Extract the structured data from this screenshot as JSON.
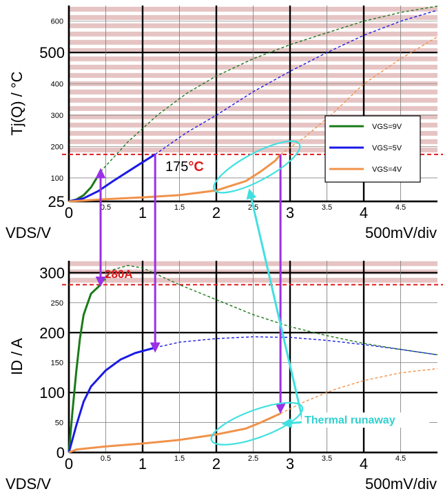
{
  "chart_data": [
    {
      "type": "line",
      "ylabel": "Tj(Q) / °C",
      "xlabel": "VDS/V",
      "x_scale_label": "500mV/div",
      "xlim": [
        0,
        5
      ],
      "ylim": [
        25,
        650
      ],
      "x_major_ticks": [
        {
          "v": 0,
          "t": "0"
        },
        {
          "v": 1,
          "t": "1"
        },
        {
          "v": 2,
          "t": "2"
        },
        {
          "v": 3,
          "t": "3"
        },
        {
          "v": 4,
          "t": "4"
        }
      ],
      "x_minor_ticks": [
        {
          "v": 0.5,
          "t": "0.5"
        },
        {
          "v": 1.5,
          "t": "1.5"
        },
        {
          "v": 2.5,
          "t": "2.5"
        },
        {
          "v": 3.5,
          "t": "3.5"
        },
        {
          "v": 4.5,
          "t": "4.5"
        }
      ],
      "y_major_ticks": [
        {
          "v": 25,
          "t": "25"
        },
        {
          "v": 500,
          "t": "500"
        }
      ],
      "y_minor_ticks": [
        {
          "v": 100,
          "t": "100"
        },
        {
          "v": 200,
          "t": "200"
        },
        {
          "v": 300,
          "t": "300"
        },
        {
          "v": 400,
          "t": "400"
        },
        {
          "v": 600,
          "t": "600"
        }
      ],
      "limit_line": {
        "value": 175,
        "label_num": "175",
        "label_unit": "°C"
      },
      "hatch_from": 175,
      "legend_placement": "right",
      "series": [
        {
          "name": "VGS=9V",
          "color": "#1a7a1a",
          "solid": [
            [
              0,
              25
            ],
            [
              0.1,
              31
            ],
            [
              0.2,
              45
            ],
            [
              0.3,
              70
            ],
            [
              0.43,
              120
            ]
          ],
          "dashed": [
            [
              0.43,
              120
            ],
            [
              0.8,
              215
            ],
            [
              1.2,
              300
            ],
            [
              1.6,
              370
            ],
            [
              2,
              425
            ],
            [
              2.5,
              480
            ],
            [
              3,
              525
            ],
            [
              3.5,
              563
            ],
            [
              4,
              600
            ],
            [
              4.5,
              628
            ],
            [
              5,
              648
            ]
          ]
        },
        {
          "name": "VGS=5V",
          "color": "#1a1ae6",
          "solid": [
            [
              0,
              25
            ],
            [
              0.2,
              35
            ],
            [
              0.4,
              58
            ],
            [
              0.6,
              90
            ],
            [
              0.8,
              120
            ],
            [
              1,
              150
            ],
            [
              1.17,
              175
            ]
          ],
          "dashed": [
            [
              1.17,
              175
            ],
            [
              1.6,
              245
            ],
            [
              2,
              300
            ],
            [
              2.5,
              375
            ],
            [
              3,
              440
            ],
            [
              3.5,
              500
            ],
            [
              4,
              555
            ],
            [
              4.5,
              600
            ],
            [
              5,
              635
            ]
          ]
        },
        {
          "name": "VGS=4V",
          "color": "#f0924a",
          "solid": [
            [
              0,
              25
            ],
            [
              0.5,
              32
            ],
            [
              1,
              38
            ],
            [
              1.5,
              45
            ],
            [
              2,
              60
            ],
            [
              2.4,
              90
            ],
            [
              2.6,
              120
            ],
            [
              2.8,
              155
            ],
            [
              2.87,
              175
            ]
          ],
          "dashed": [
            [
              2.87,
              175
            ],
            [
              3.2,
              230
            ],
            [
              3.6,
              310
            ],
            [
              4,
              400
            ],
            [
              4.5,
              480
            ],
            [
              5,
              550
            ]
          ]
        }
      ]
    },
    {
      "type": "line",
      "ylabel": "ID / A",
      "xlabel": "VDS/V",
      "x_scale_label": "500mV/div",
      "xlim": [
        0,
        5
      ],
      "ylim": [
        0,
        320
      ],
      "x_major_ticks": [
        {
          "v": 0,
          "t": "0"
        },
        {
          "v": 1,
          "t": "1"
        },
        {
          "v": 2,
          "t": "2"
        },
        {
          "v": 3,
          "t": "3"
        },
        {
          "v": 4,
          "t": "4"
        }
      ],
      "x_minor_ticks": [
        {
          "v": 0.5,
          "t": "0.5"
        },
        {
          "v": 1.5,
          "t": "1.5"
        },
        {
          "v": 2.5,
          "t": "2.5"
        },
        {
          "v": 3.5,
          "t": "3.5"
        },
        {
          "v": 4.5,
          "t": "4.5"
        }
      ],
      "y_major_ticks": [
        {
          "v": 0,
          "t": "0"
        },
        {
          "v": 100,
          "t": "100"
        },
        {
          "v": 200,
          "t": "200"
        },
        {
          "v": 300,
          "t": "300"
        }
      ],
      "y_minor_ticks": [
        {
          "v": 50,
          "t": "50"
        },
        {
          "v": 150,
          "t": "150"
        },
        {
          "v": 250,
          "t": "250"
        }
      ],
      "limit_line": {
        "value": 280,
        "label_num": "280A",
        "label_unit": ""
      },
      "hatch_from": 280,
      "series": [
        {
          "name": "VGS=9V",
          "color": "#1a7a1a",
          "solid": [
            [
              0,
              0
            ],
            [
              0.05,
              70
            ],
            [
              0.1,
              135
            ],
            [
              0.15,
              190
            ],
            [
              0.2,
              230
            ],
            [
              0.3,
              265
            ],
            [
              0.43,
              280
            ]
          ],
          "dashed": [
            [
              0.43,
              280
            ],
            [
              0.6,
              305
            ],
            [
              0.8,
              312
            ],
            [
              1,
              308
            ],
            [
              1.5,
              280
            ],
            [
              2,
              255
            ],
            [
              2.5,
              230
            ],
            [
              3,
              210
            ],
            [
              3.5,
              195
            ],
            [
              4,
              182
            ],
            [
              4.5,
              172
            ],
            [
              5,
              163
            ]
          ]
        },
        {
          "name": "VGS=5V",
          "color": "#1a1ae6",
          "solid": [
            [
              0,
              0
            ],
            [
              0.1,
              45
            ],
            [
              0.2,
              85
            ],
            [
              0.3,
              110
            ],
            [
              0.5,
              137
            ],
            [
              0.7,
              155
            ],
            [
              0.9,
              166
            ],
            [
              1.17,
              175
            ]
          ],
          "dashed": [
            [
              1.17,
              175
            ],
            [
              1.5,
              184
            ],
            [
              2,
              190
            ],
            [
              2.5,
              193
            ],
            [
              3,
              192
            ],
            [
              3.5,
              187
            ],
            [
              4,
              180
            ],
            [
              4.5,
              172
            ],
            [
              5,
              163
            ]
          ]
        },
        {
          "name": "VGS=4V",
          "color": "#f0924a",
          "solid": [
            [
              0,
              0
            ],
            [
              0.1,
              5
            ],
            [
              0.5,
              10
            ],
            [
              1,
              15
            ],
            [
              1.5,
              21
            ],
            [
              2,
              30
            ],
            [
              2.4,
              40
            ],
            [
              2.6,
              50
            ],
            [
              2.87,
              65
            ]
          ],
          "dashed": [
            [
              2.87,
              65
            ],
            [
              3.2,
              85
            ],
            [
              3.6,
              105
            ],
            [
              4,
              120
            ],
            [
              4.5,
              133
            ],
            [
              5,
              140
            ]
          ]
        }
      ]
    }
  ],
  "annotations": {
    "thermal_runaway": "Thermal runaway"
  }
}
